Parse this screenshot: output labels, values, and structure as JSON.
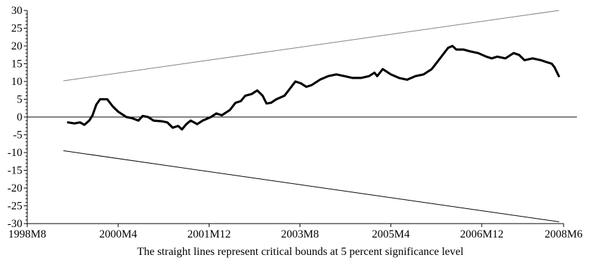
{
  "chart_data": {
    "type": "line",
    "title": "",
    "caption": "The straight lines represent critical bounds at 5 percent significance level",
    "xlabel": "",
    "ylabel": "",
    "ylim": [
      -30,
      30
    ],
    "y_ticks": [
      30,
      25,
      20,
      15,
      10,
      5,
      0,
      -5,
      -10,
      -15,
      -20,
      -25,
      -30
    ],
    "xlim": [
      1998.583,
      2008.417
    ],
    "x_ticks": [
      {
        "label": "1998M8",
        "x": 1998.583
      },
      {
        "label": "2000M4",
        "x": 2000.25
      },
      {
        "label": "2001M12",
        "x": 2001.917
      },
      {
        "label": "2003M8",
        "x": 2003.583
      },
      {
        "label": "2005M4",
        "x": 2005.25
      },
      {
        "label": "2006M12",
        "x": 2006.917
      },
      {
        "label": "2008M6",
        "x": 2008.417
      }
    ],
    "grid": false,
    "series": [
      {
        "role": "statistic",
        "color": "#000000",
        "points": [
          [
            1999.33,
            -1.5
          ],
          [
            1999.45,
            -1.8
          ],
          [
            1999.55,
            -1.5
          ],
          [
            1999.63,
            -2.2
          ],
          [
            1999.72,
            -1.0
          ],
          [
            1999.78,
            0.5
          ],
          [
            1999.85,
            3.5
          ],
          [
            1999.92,
            5.0
          ],
          [
            2000.05,
            5.0
          ],
          [
            2000.15,
            3.0
          ],
          [
            2000.25,
            1.5
          ],
          [
            2000.4,
            0.0
          ],
          [
            2000.5,
            -0.3
          ],
          [
            2000.62,
            -1.0
          ],
          [
            2000.7,
            0.3
          ],
          [
            2000.8,
            0.0
          ],
          [
            2000.9,
            -1.0
          ],
          [
            2001.05,
            -1.2
          ],
          [
            2001.15,
            -1.5
          ],
          [
            2001.25,
            -3.0
          ],
          [
            2001.35,
            -2.5
          ],
          [
            2001.42,
            -3.5
          ],
          [
            2001.5,
            -2.0
          ],
          [
            2001.58,
            -1.0
          ],
          [
            2001.7,
            -2.0
          ],
          [
            2001.8,
            -1.0
          ],
          [
            2001.95,
            0.0
          ],
          [
            2002.05,
            1.0
          ],
          [
            2002.15,
            0.5
          ],
          [
            2002.3,
            2.0
          ],
          [
            2002.4,
            4.0
          ],
          [
            2002.5,
            4.5
          ],
          [
            2002.58,
            6.0
          ],
          [
            2002.7,
            6.5
          ],
          [
            2002.8,
            7.5
          ],
          [
            2002.9,
            6.0
          ],
          [
            2002.97,
            3.8
          ],
          [
            2003.05,
            4.0
          ],
          [
            2003.15,
            5.0
          ],
          [
            2003.3,
            6.0
          ],
          [
            2003.4,
            8.0
          ],
          [
            2003.5,
            10.0
          ],
          [
            2003.6,
            9.5
          ],
          [
            2003.7,
            8.5
          ],
          [
            2003.8,
            9.0
          ],
          [
            2003.95,
            10.5
          ],
          [
            2004.1,
            11.5
          ],
          [
            2004.25,
            12.0
          ],
          [
            2004.4,
            11.5
          ],
          [
            2004.55,
            11.0
          ],
          [
            2004.7,
            11.0
          ],
          [
            2004.85,
            11.5
          ],
          [
            2004.95,
            12.5
          ],
          [
            2005.0,
            11.5
          ],
          [
            2005.1,
            13.5
          ],
          [
            2005.25,
            12.0
          ],
          [
            2005.4,
            11.0
          ],
          [
            2005.55,
            10.5
          ],
          [
            2005.7,
            11.5
          ],
          [
            2005.85,
            12.0
          ],
          [
            2006.0,
            13.5
          ],
          [
            2006.1,
            15.5
          ],
          [
            2006.2,
            17.5
          ],
          [
            2006.3,
            19.5
          ],
          [
            2006.38,
            20.0
          ],
          [
            2006.45,
            19.0
          ],
          [
            2006.58,
            19.0
          ],
          [
            2006.7,
            18.5
          ],
          [
            2006.85,
            18.0
          ],
          [
            2007.0,
            17.0
          ],
          [
            2007.1,
            16.5
          ],
          [
            2007.2,
            17.0
          ],
          [
            2007.35,
            16.5
          ],
          [
            2007.5,
            18.0
          ],
          [
            2007.6,
            17.5
          ],
          [
            2007.7,
            16.0
          ],
          [
            2007.85,
            16.5
          ],
          [
            2008.0,
            16.0
          ],
          [
            2008.1,
            15.5
          ],
          [
            2008.2,
            15.0
          ],
          [
            2008.25,
            14.0
          ],
          [
            2008.33,
            11.5
          ]
        ]
      },
      {
        "role": "upper-bound",
        "color": "#7f7f7f",
        "points": [
          [
            1999.25,
            10.2
          ],
          [
            2008.33,
            30.0
          ]
        ]
      },
      {
        "role": "lower-bound",
        "color": "#000000",
        "points": [
          [
            1999.25,
            -9.5
          ],
          [
            2008.33,
            -29.5
          ]
        ]
      }
    ]
  }
}
